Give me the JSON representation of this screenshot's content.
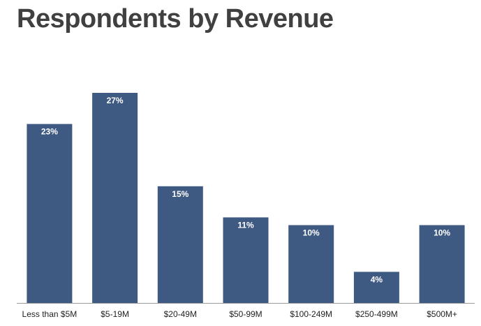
{
  "chart_data": {
    "type": "bar",
    "title": "Respondents by Revenue",
    "xlabel": "",
    "ylabel": "",
    "categories": [
      "Less than $5M",
      "$5-19M",
      "$20-49M",
      "$50-99M",
      "$100-249M",
      "$250-499M",
      "$500M+"
    ],
    "values": [
      23,
      27,
      15,
      11,
      10,
      4,
      10
    ],
    "data_labels": [
      "23%",
      "27%",
      "15%",
      "11%",
      "10%",
      "4%",
      "10%"
    ],
    "ylim": [
      0,
      27
    ],
    "grid": false,
    "legend": "none",
    "colors": {
      "bar": "#3f5a82",
      "axis": "#9a9a9a",
      "title": "#404040",
      "label": "#ffffff"
    }
  }
}
